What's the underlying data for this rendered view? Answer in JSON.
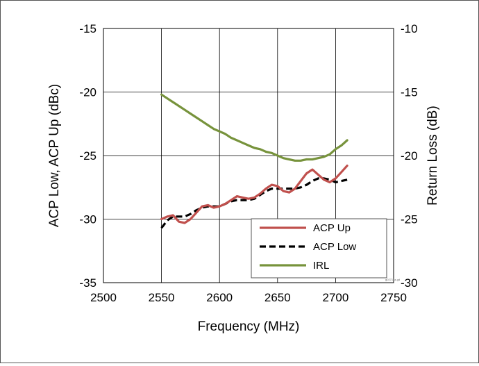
{
  "chart_data": {
    "type": "line",
    "xlabel": "Frequency (MHz)",
    "ylabel": "ACP Low, ACP Up (dBc)",
    "y2label": "Return Loss (dB)",
    "xlim": [
      2500,
      2750
    ],
    "ylim": [
      -35,
      -15
    ],
    "y2lim": [
      -30,
      -10
    ],
    "xticks": [
      "2500",
      "2550",
      "2600",
      "2650",
      "2700",
      "2750"
    ],
    "yticks": [
      "-15",
      "-20",
      "-25",
      "-30",
      "-35"
    ],
    "y2ticks": [
      "-10",
      "-15",
      "-20",
      "-25",
      "-30"
    ],
    "grid": true,
    "legend_position": "bottom-right",
    "watermark": "g02711a-gd",
    "series": [
      {
        "name": "ACP Up",
        "axis": "left",
        "color": "#c0504d",
        "dash": "solid",
        "x": [
          2550,
          2555,
          2560,
          2565,
          2570,
          2575,
          2580,
          2585,
          2590,
          2595,
          2600,
          2605,
          2610,
          2615,
          2620,
          2625,
          2630,
          2635,
          2640,
          2645,
          2650,
          2655,
          2660,
          2665,
          2670,
          2675,
          2680,
          2685,
          2690,
          2695,
          2700,
          2705,
          2710
        ],
        "y": [
          -30.0,
          -29.8,
          -29.7,
          -30.2,
          -30.3,
          -30.0,
          -29.5,
          -29.0,
          -28.9,
          -29.1,
          -29.0,
          -28.8,
          -28.5,
          -28.2,
          -28.3,
          -28.4,
          -28.3,
          -28.0,
          -27.6,
          -27.3,
          -27.4,
          -27.8,
          -27.9,
          -27.6,
          -27.0,
          -26.4,
          -26.1,
          -26.5,
          -26.9,
          -27.1,
          -26.8,
          -26.3,
          -25.8
        ]
      },
      {
        "name": "ACP Low",
        "axis": "left",
        "color": "#000000",
        "dash": "dashed",
        "x": [
          2550,
          2555,
          2560,
          2565,
          2570,
          2575,
          2580,
          2585,
          2590,
          2595,
          2600,
          2605,
          2610,
          2615,
          2620,
          2625,
          2630,
          2635,
          2640,
          2645,
          2650,
          2655,
          2660,
          2665,
          2670,
          2675,
          2680,
          2685,
          2690,
          2695,
          2700,
          2705,
          2710
        ],
        "y": [
          -30.7,
          -30.1,
          -29.8,
          -29.8,
          -29.8,
          -29.6,
          -29.3,
          -29.1,
          -29.0,
          -29.0,
          -29.0,
          -28.8,
          -28.6,
          -28.5,
          -28.5,
          -28.5,
          -28.4,
          -28.1,
          -27.8,
          -27.6,
          -27.6,
          -27.6,
          -27.6,
          -27.6,
          -27.5,
          -27.3,
          -27.0,
          -26.8,
          -26.8,
          -26.9,
          -27.1,
          -27.0,
          -26.9
        ]
      },
      {
        "name": "IRL",
        "axis": "right",
        "color": "#77933c",
        "dash": "solid",
        "x": [
          2550,
          2555,
          2560,
          2565,
          2570,
          2575,
          2580,
          2585,
          2590,
          2595,
          2600,
          2605,
          2610,
          2615,
          2620,
          2625,
          2630,
          2635,
          2640,
          2645,
          2650,
          2655,
          2660,
          2665,
          2670,
          2675,
          2680,
          2685,
          2690,
          2695,
          2700,
          2705,
          2710
        ],
        "y": [
          -15.2,
          -15.5,
          -15.8,
          -16.1,
          -16.4,
          -16.7,
          -17.0,
          -17.3,
          -17.6,
          -17.9,
          -18.1,
          -18.3,
          -18.6,
          -18.8,
          -19.0,
          -19.2,
          -19.4,
          -19.5,
          -19.7,
          -19.8,
          -20.0,
          -20.2,
          -20.3,
          -20.4,
          -20.4,
          -20.3,
          -20.3,
          -20.2,
          -20.1,
          -19.9,
          -19.5,
          -19.2,
          -18.8
        ]
      }
    ]
  }
}
